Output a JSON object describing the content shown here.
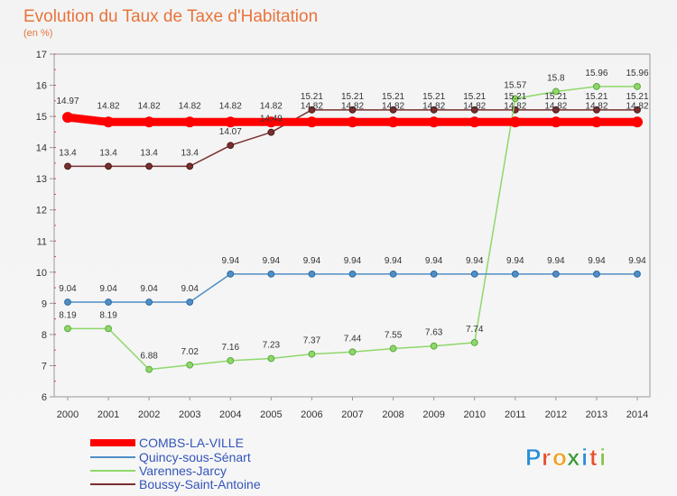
{
  "chart_data": {
    "type": "line",
    "title": "Evolution du Taux de Taxe d'Habitation",
    "unit_label": "(en %)",
    "x": [
      "2000",
      "2001",
      "2002",
      "2003",
      "2004",
      "2005",
      "2006",
      "2007",
      "2008",
      "2009",
      "2010",
      "2011",
      "2012",
      "2013",
      "2014"
    ],
    "ylim": [
      6,
      17
    ],
    "yticks": [
      "6",
      "7",
      "8",
      "9",
      "10",
      "11",
      "12",
      "13",
      "14",
      "15",
      "16",
      "17"
    ],
    "grid": false,
    "legend_position": "bottom-left",
    "series": [
      {
        "name": "COMBS-LA-VILLE",
        "color": "#ff0000",
        "values": [
          14.97,
          14.82,
          14.82,
          14.82,
          14.82,
          14.82,
          14.82,
          14.82,
          14.82,
          14.82,
          14.82,
          14.82,
          14.82,
          14.82,
          14.82
        ],
        "labels": [
          "14.97",
          "14.82",
          "14.82",
          "14.82",
          "14.82",
          "14.82",
          "14.82",
          "14.82",
          "14.82",
          "14.82",
          "14.82",
          "14.82",
          "14.82",
          "14.82",
          "14.82"
        ]
      },
      {
        "name": "Quincy-sous-Sénart",
        "color": "#4f8fc6",
        "values": [
          9.04,
          9.04,
          9.04,
          9.04,
          9.94,
          9.94,
          9.94,
          9.94,
          9.94,
          9.94,
          9.94,
          9.94,
          9.94,
          9.94,
          9.94
        ],
        "labels": [
          "9.04",
          "9.04",
          "9.04",
          "9.04",
          "9.94",
          "9.94",
          "9.94",
          "9.94",
          "9.94",
          "9.94",
          "9.94",
          "9.94",
          "9.94",
          "9.94",
          "9.94"
        ]
      },
      {
        "name": "Varennes-Jarcy",
        "color": "#8ed86a",
        "values": [
          8.19,
          8.19,
          6.88,
          7.02,
          7.16,
          7.23,
          7.37,
          7.44,
          7.55,
          7.63,
          7.74,
          15.57,
          15.8,
          15.96,
          15.96
        ],
        "labels": [
          "8.19",
          "8.19",
          "6.88",
          "7.02",
          "7.16",
          "7.23",
          "7.37",
          "7.44",
          "7.55",
          "7.63",
          "7.74",
          "15.57",
          "15.8",
          "15.96",
          "15.96"
        ]
      },
      {
        "name": "Boussy-Saint-Antoine",
        "color": "#7a2f2f",
        "values": [
          13.4,
          13.4,
          13.4,
          13.4,
          14.07,
          14.49,
          15.21,
          15.21,
          15.21,
          15.21,
          15.21,
          15.21,
          15.21,
          15.21,
          15.21
        ],
        "labels": [
          "13.4",
          "13.4",
          "13.4",
          "13.4",
          "14.07",
          "14.49",
          "15.21",
          "15.21",
          "15.21",
          "15.21",
          "15.21",
          "15.21",
          "15.21",
          "15.21",
          "15.21"
        ]
      }
    ]
  },
  "logo": {
    "letters": [
      "P",
      "r",
      "o",
      "x",
      "i",
      "t",
      "i"
    ],
    "colors": [
      "#2a8fd6",
      "#e8502e",
      "#f0a020",
      "#3a9a3a",
      "#2a8fd6",
      "#e8502e",
      "#8bc34a"
    ]
  }
}
